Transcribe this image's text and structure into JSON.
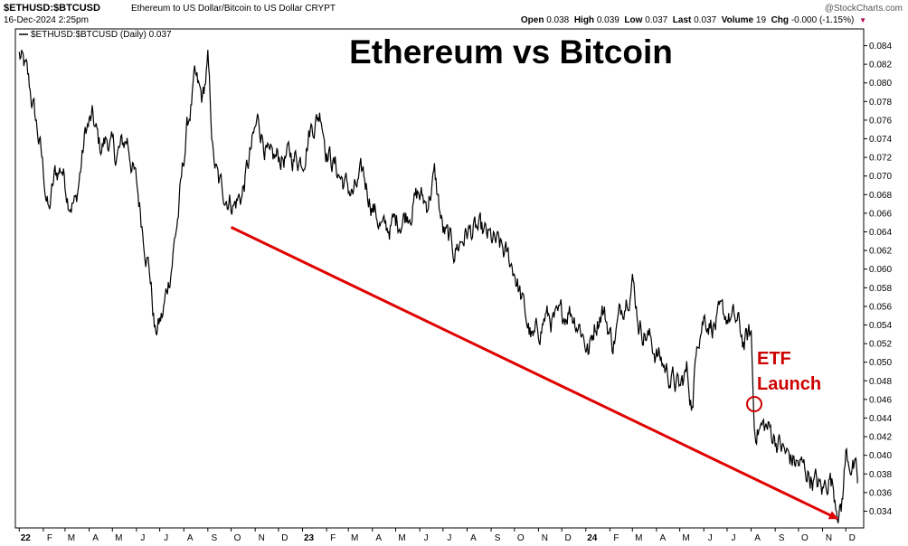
{
  "header": {
    "symbol": "$ETHUSD:$BTCUSD",
    "description": "Ethereum to US Dollar/Bitcoin to US Dollar  CRYPT",
    "date": "16-Dec-2024 2:25pm",
    "copyright": "@StockCharts.com",
    "quote": {
      "open_label": "Open",
      "open": "0.038",
      "high_label": "High",
      "high": "0.039",
      "low_label": "Low",
      "low": "0.037",
      "last_label": "Last",
      "last": "0.037",
      "volume_label": "Volume",
      "volume": "19",
      "chg_label": "Chg",
      "chg": "-0.000 (-1.15%)"
    }
  },
  "legend_text": "$ETHUSD:$BTCUSD (Daily) 0.037",
  "annotations": {
    "title": "Ethereum vs Bitcoin",
    "etf_line1": "ETF",
    "etf_line2": "Launch"
  },
  "colors": {
    "price_line": "#000000",
    "trend_arrow": "#e00000",
    "etf_label": "#cc0000"
  },
  "chart_data": {
    "type": "line",
    "title": "Ethereum vs Bitcoin",
    "series": [
      {
        "name": "$ETHUSD:$BTCUSD (Daily)",
        "x": [
          "2022-01-01",
          "2022-01-10",
          "2022-01-20",
          "2022-01-28",
          "2022-02-08",
          "2022-02-16",
          "2022-02-25",
          "2022-03-05",
          "2022-03-15",
          "2022-03-28",
          "2022-04-05",
          "2022-04-15",
          "2022-04-25",
          "2022-05-05",
          "2022-05-20",
          "2022-06-01",
          "2022-06-10",
          "2022-06-18",
          "2022-06-25",
          "2022-07-05",
          "2022-07-15",
          "2022-07-25",
          "2022-08-05",
          "2022-08-15",
          "2022-08-25",
          "2022-09-01",
          "2022-09-08",
          "2022-09-15",
          "2022-09-25",
          "2022-10-05",
          "2022-10-15",
          "2022-10-25",
          "2022-11-05",
          "2022-11-12",
          "2022-11-20",
          "2022-12-01",
          "2022-12-15",
          "2023-01-01",
          "2023-01-10",
          "2023-01-25",
          "2023-02-01",
          "2023-02-12",
          "2023-02-25",
          "2023-03-08",
          "2023-03-20",
          "2023-04-01",
          "2023-04-15",
          "2023-05-01",
          "2023-05-15",
          "2023-05-30",
          "2023-06-10",
          "2023-06-20",
          "2023-07-01",
          "2023-07-15",
          "2023-08-01",
          "2023-08-15",
          "2023-09-01",
          "2023-09-15",
          "2023-10-01",
          "2023-10-15",
          "2023-10-25",
          "2023-11-10",
          "2023-11-25",
          "2023-12-10",
          "2023-12-25",
          "2024-01-05",
          "2024-01-12",
          "2024-01-22",
          "2024-02-05",
          "2024-02-20",
          "2024-03-01",
          "2024-03-10",
          "2024-03-20",
          "2024-04-01",
          "2024-04-15",
          "2024-05-01",
          "2024-05-10",
          "2024-05-18",
          "2024-05-23",
          "2024-06-01",
          "2024-06-15",
          "2024-07-01",
          "2024-07-15",
          "2024-07-23",
          "2024-08-01",
          "2024-08-05",
          "2024-08-20",
          "2024-09-01",
          "2024-09-15",
          "2024-10-01",
          "2024-10-15",
          "2024-11-01",
          "2024-11-10",
          "2024-11-20",
          "2024-11-25",
          "2024-12-01",
          "2024-12-10",
          "2024-12-16"
        ],
        "y": [
          0.083,
          0.081,
          0.077,
          0.073,
          0.066,
          0.07,
          0.071,
          0.068,
          0.067,
          0.075,
          0.076,
          0.073,
          0.074,
          0.072,
          0.074,
          0.069,
          0.064,
          0.06,
          0.053,
          0.055,
          0.06,
          0.066,
          0.075,
          0.08,
          0.078,
          0.082,
          0.072,
          0.069,
          0.068,
          0.067,
          0.068,
          0.072,
          0.076,
          0.074,
          0.071,
          0.072,
          0.072,
          0.072,
          0.075,
          0.077,
          0.073,
          0.071,
          0.069,
          0.068,
          0.07,
          0.067,
          0.064,
          0.065,
          0.066,
          0.068,
          0.067,
          0.07,
          0.064,
          0.062,
          0.064,
          0.064,
          0.063,
          0.062,
          0.06,
          0.055,
          0.052,
          0.055,
          0.054,
          0.056,
          0.054,
          0.051,
          0.054,
          0.056,
          0.052,
          0.057,
          0.059,
          0.054,
          0.053,
          0.051,
          0.049,
          0.047,
          0.049,
          0.045,
          0.053,
          0.055,
          0.054,
          0.055,
          0.054,
          0.052,
          0.053,
          0.043,
          0.043,
          0.042,
          0.04,
          0.039,
          0.038,
          0.036,
          0.038,
          0.035,
          0.034,
          0.04,
          0.039,
          0.037
        ]
      }
    ],
    "trend_arrow": {
      "from": {
        "x": "2022-10-01",
        "y": 0.0645
      },
      "to": {
        "x": "2024-11-20",
        "y": 0.0332
      }
    },
    "etf_marker": {
      "x": "2024-08-05",
      "y": 0.0455
    },
    "x_ticks": [
      {
        "date": "2022-01-01",
        "label": "22"
      },
      {
        "date": "2022-02-01",
        "label": "F"
      },
      {
        "date": "2022-03-01",
        "label": "M"
      },
      {
        "date": "2022-04-01",
        "label": "A"
      },
      {
        "date": "2022-05-01",
        "label": "M"
      },
      {
        "date": "2022-06-01",
        "label": "J"
      },
      {
        "date": "2022-07-01",
        "label": "J"
      },
      {
        "date": "2022-08-01",
        "label": "A"
      },
      {
        "date": "2022-09-01",
        "label": "S"
      },
      {
        "date": "2022-10-01",
        "label": "O"
      },
      {
        "date": "2022-11-01",
        "label": "N"
      },
      {
        "date": "2022-12-01",
        "label": "D"
      },
      {
        "date": "2023-01-01",
        "label": "23"
      },
      {
        "date": "2023-02-01",
        "label": "F"
      },
      {
        "date": "2023-03-01",
        "label": "M"
      },
      {
        "date": "2023-04-01",
        "label": "A"
      },
      {
        "date": "2023-05-01",
        "label": "M"
      },
      {
        "date": "2023-06-01",
        "label": "J"
      },
      {
        "date": "2023-07-01",
        "label": "J"
      },
      {
        "date": "2023-08-01",
        "label": "A"
      },
      {
        "date": "2023-09-01",
        "label": "S"
      },
      {
        "date": "2023-10-01",
        "label": "O"
      },
      {
        "date": "2023-11-01",
        "label": "N"
      },
      {
        "date": "2023-12-01",
        "label": "D"
      },
      {
        "date": "2024-01-01",
        "label": "24"
      },
      {
        "date": "2024-02-01",
        "label": "F"
      },
      {
        "date": "2024-03-01",
        "label": "M"
      },
      {
        "date": "2024-04-01",
        "label": "A"
      },
      {
        "date": "2024-05-01",
        "label": "M"
      },
      {
        "date": "2024-06-01",
        "label": "J"
      },
      {
        "date": "2024-07-01",
        "label": "J"
      },
      {
        "date": "2024-08-01",
        "label": "A"
      },
      {
        "date": "2024-09-01",
        "label": "S"
      },
      {
        "date": "2024-10-01",
        "label": "O"
      },
      {
        "date": "2024-11-01",
        "label": "N"
      },
      {
        "date": "2024-12-01",
        "label": "D"
      }
    ],
    "y_ticks": [
      "0.034",
      "0.036",
      "0.038",
      "0.040",
      "0.042",
      "0.044",
      "0.046",
      "0.048",
      "0.050",
      "0.052",
      "0.054",
      "0.056",
      "0.058",
      "0.060",
      "0.062",
      "0.064",
      "0.066",
      "0.068",
      "0.070",
      "0.072",
      "0.074",
      "0.076",
      "0.078",
      "0.080",
      "0.082",
      "0.084"
    ],
    "ylim": [
      0.0322,
      0.0858
    ],
    "xlim": [
      "2021-12-27",
      "2024-12-24"
    ],
    "grid": false,
    "legend_position": "top-left"
  }
}
